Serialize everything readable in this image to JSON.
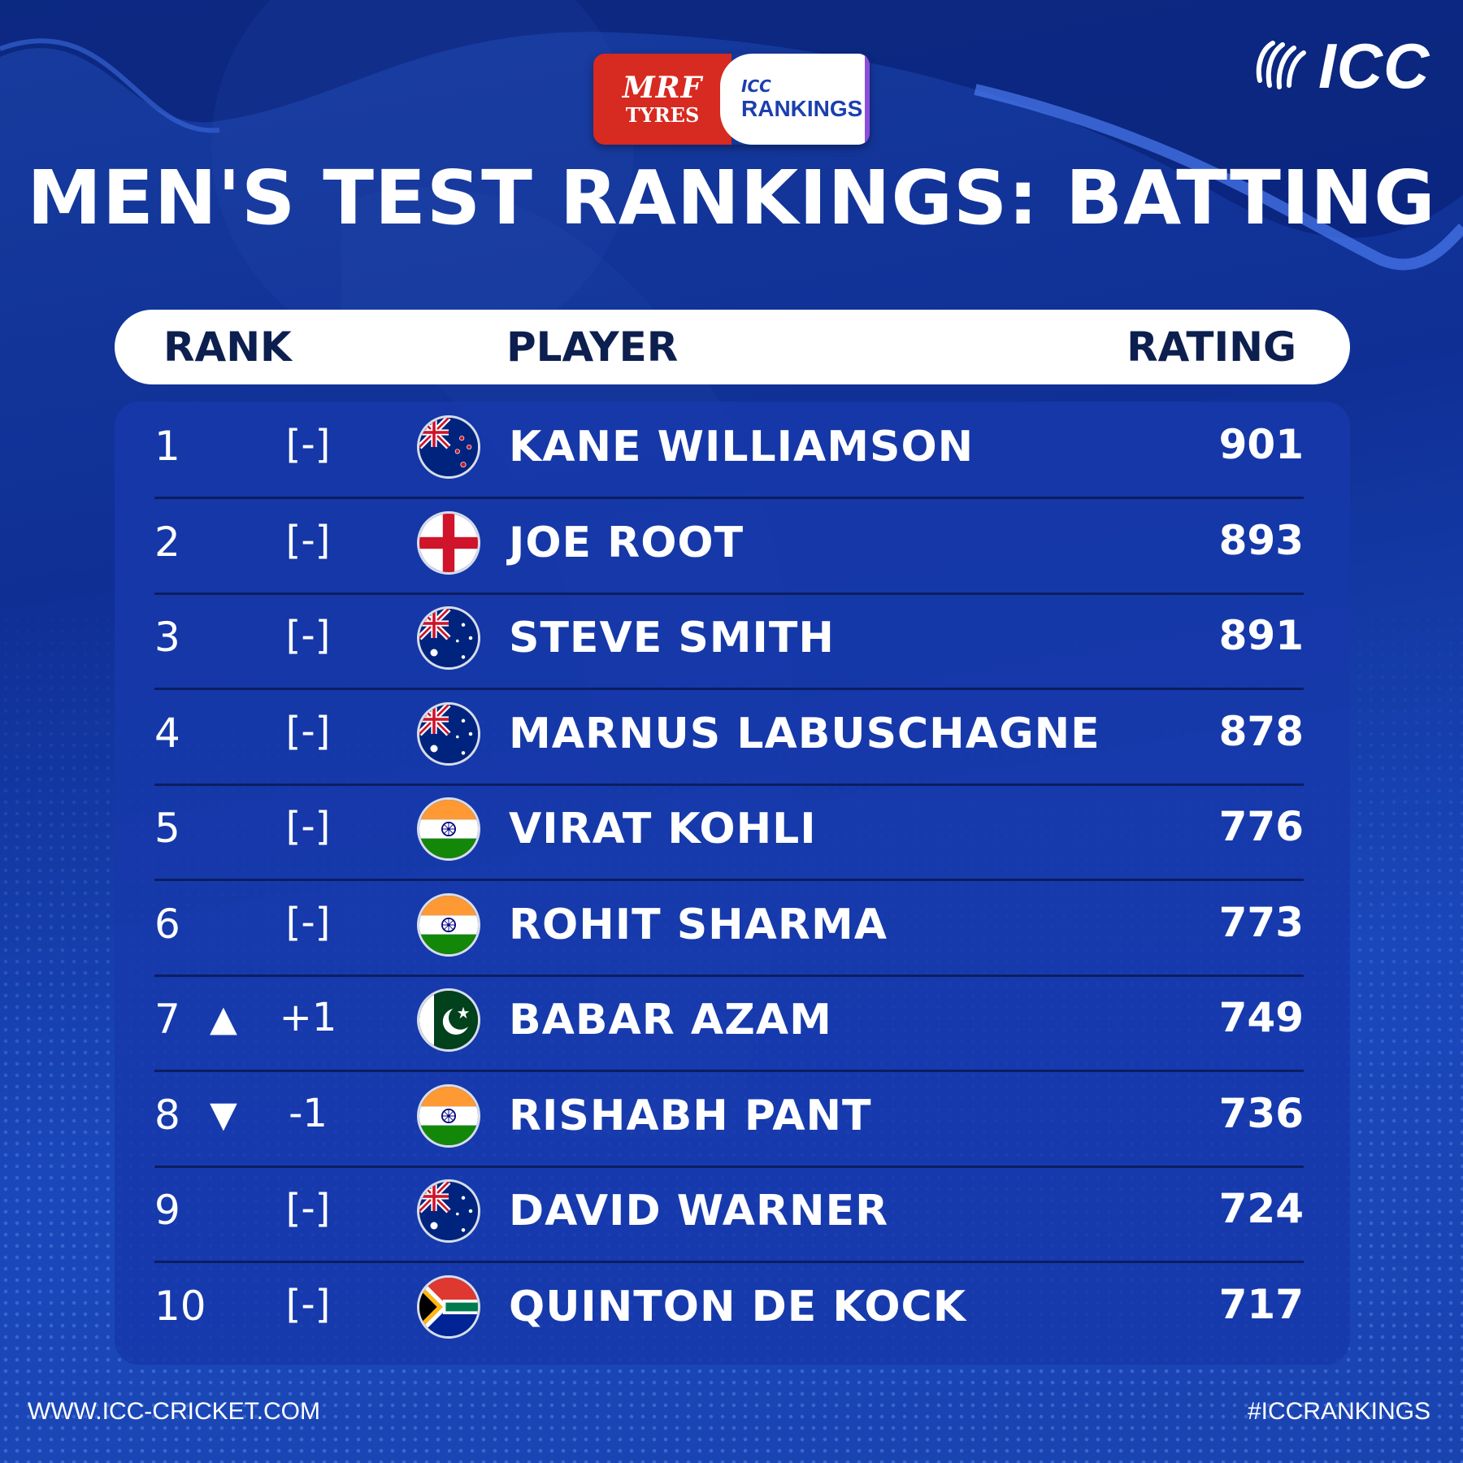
{
  "sponsor": {
    "brand": "MRF",
    "brand_sub": "TYRES",
    "icc": "ICC",
    "rankings": "RANKINGS"
  },
  "logo": {
    "wordmark": "ICC"
  },
  "title": "MEN'S TEST RANKINGS: BATTING",
  "table": {
    "headers": {
      "rank": "RANK",
      "player": "PLAYER",
      "rating": "RATING"
    },
    "rows": [
      {
        "rank": "1",
        "arrow": "",
        "move": "[-]",
        "flag": "new-zealand",
        "player": "KANE WILLIAMSON",
        "rating": "901"
      },
      {
        "rank": "2",
        "arrow": "",
        "move": "[-]",
        "flag": "england",
        "player": "JOE ROOT",
        "rating": "893"
      },
      {
        "rank": "3",
        "arrow": "",
        "move": "[-]",
        "flag": "australia",
        "player": "STEVE SMITH",
        "rating": "891"
      },
      {
        "rank": "4",
        "arrow": "",
        "move": "[-]",
        "flag": "australia",
        "player": "MARNUS LABUSCHAGNE",
        "rating": "878"
      },
      {
        "rank": "5",
        "arrow": "",
        "move": "[-]",
        "flag": "india",
        "player": "VIRAT KOHLI",
        "rating": "776"
      },
      {
        "rank": "6",
        "arrow": "",
        "move": "[-]",
        "flag": "india",
        "player": "ROHIT SHARMA",
        "rating": "773"
      },
      {
        "rank": "7",
        "arrow": "▲",
        "move": "+1",
        "flag": "pakistan",
        "player": "BABAR AZAM",
        "rating": "749"
      },
      {
        "rank": "8",
        "arrow": "▼",
        "move": "-1",
        "flag": "india",
        "player": "RISHABH PANT",
        "rating": "736"
      },
      {
        "rank": "9",
        "arrow": "",
        "move": "[-]",
        "flag": "australia",
        "player": "DAVID WARNER",
        "rating": "724"
      },
      {
        "rank": "10",
        "arrow": "",
        "move": "[-]",
        "flag": "south-africa",
        "player": "QUINTON DE KOCK",
        "rating": "717"
      }
    ]
  },
  "footer": {
    "website": "WWW.ICC-CRICKET.COM",
    "hashtag": "#ICCRANKINGS"
  },
  "colors": {
    "background": "#1538a8",
    "header_bar": "#ffffff",
    "header_text": "#0d1f4f",
    "row_divider": "#0c1e62",
    "sponsor_red": "#d72a20"
  }
}
